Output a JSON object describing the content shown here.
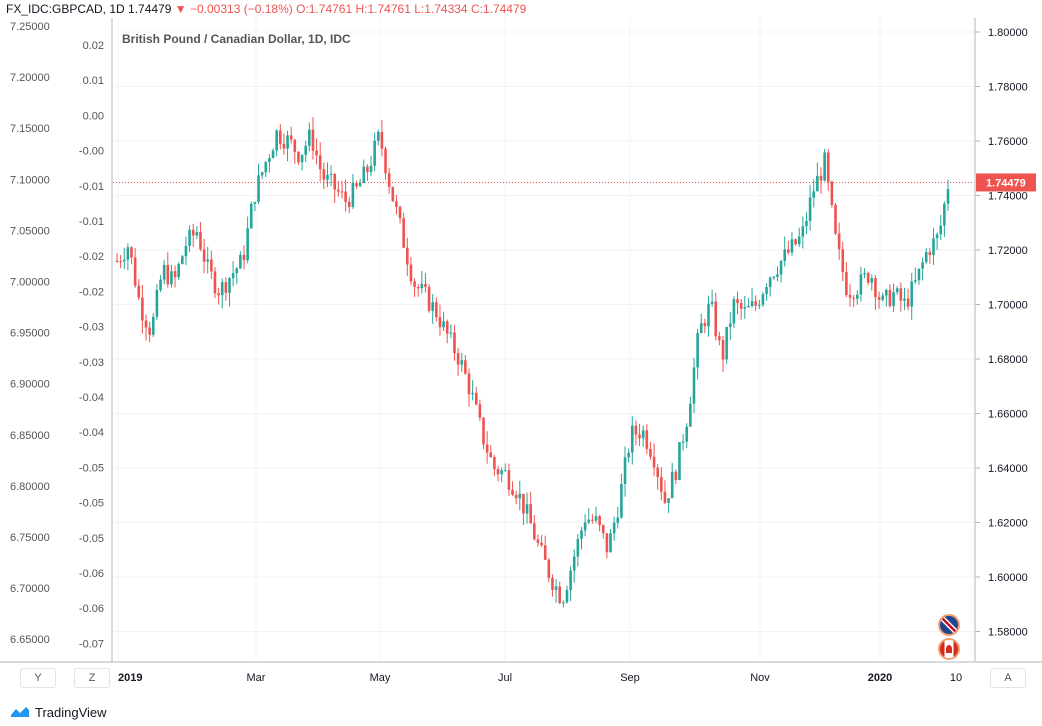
{
  "header": {
    "symbol": "FX_IDC:GBPCAD, 1D",
    "last": "1.74479",
    "change": "▼ −0.00313 (−0.18%)",
    "ohlc_open": "O:1.74761",
    "ohlc_high": "H:1.74761",
    "ohlc_low": "L:1.74334",
    "ohlc_close": "C:1.74479"
  },
  "footer": {
    "brand": "TradingView"
  },
  "buttons": {
    "y": "Y",
    "z": "Z",
    "a": "A"
  },
  "flags": {
    "uk_badge": "5",
    "ca_badge": "2"
  },
  "colors": {
    "up": "#26a69a",
    "down": "#ef5350",
    "grid": "#f0f3fa",
    "axis_text": "#131722",
    "price_line": "#ef5350"
  },
  "chart_data": {
    "type": "candlestick",
    "title": "British Pound / Canadian Dollar, 1D, IDC",
    "x_labels": [
      "2019",
      "Mar",
      "May",
      "Jul",
      "Sep",
      "Nov",
      "2020",
      "10"
    ],
    "right_axis": {
      "ticks": [
        "1.80000",
        "1.78000",
        "1.76000",
        "1.74000",
        "1.72000",
        "1.70000",
        "1.68000",
        "1.66000",
        "1.64000",
        "1.62000",
        "1.60000",
        "1.58000"
      ],
      "range": [
        1.572,
        1.806
      ]
    },
    "left_axis_outer": {
      "ticks": [
        "7.25000",
        "7.20000",
        "7.15000",
        "7.10000",
        "7.05000",
        "7.00000",
        "6.95000",
        "6.90000",
        "6.85000",
        "6.80000",
        "6.75000",
        "6.70000",
        "6.65000"
      ]
    },
    "left_axis_inner": {
      "ticks": [
        "0.02",
        "0.01",
        "0.00",
        "-0.00",
        "-0.01",
        "-0.01",
        "-0.02",
        "-0.02",
        "-0.03",
        "-0.03",
        "-0.04",
        "-0.04",
        "-0.05",
        "-0.05",
        "-0.05",
        "-0.06",
        "-0.06",
        "-0.07"
      ]
    },
    "last_price": "1.74479",
    "last_value": 1.74479,
    "close_path": [
      [
        0,
        1.716
      ],
      [
        5,
        1.722
      ],
      [
        10,
        1.7
      ],
      [
        15,
        1.69
      ],
      [
        20,
        1.713
      ],
      [
        25,
        1.708
      ],
      [
        30,
        1.722
      ],
      [
        35,
        1.727
      ],
      [
        40,
        1.712
      ],
      [
        45,
        1.705
      ],
      [
        50,
        1.711
      ],
      [
        55,
        1.716
      ],
      [
        60,
        1.74
      ],
      [
        65,
        1.752
      ],
      [
        70,
        1.763
      ],
      [
        75,
        1.76
      ],
      [
        80,
        1.755
      ],
      [
        85,
        1.762
      ],
      [
        90,
        1.747
      ],
      [
        95,
        1.743
      ],
      [
        100,
        1.738
      ],
      [
        105,
        1.742
      ],
      [
        110,
        1.75
      ],
      [
        115,
        1.762
      ],
      [
        120,
        1.742
      ],
      [
        125,
        1.725
      ],
      [
        130,
        1.708
      ],
      [
        135,
        1.703
      ],
      [
        140,
        1.697
      ],
      [
        145,
        1.688
      ],
      [
        150,
        1.68
      ],
      [
        155,
        1.668
      ],
      [
        160,
        1.652
      ],
      [
        165,
        1.64
      ],
      [
        170,
        1.638
      ],
      [
        175,
        1.632
      ],
      [
        180,
        1.622
      ],
      [
        185,
        1.61
      ],
      [
        190,
        1.6
      ],
      [
        195,
        1.592
      ],
      [
        200,
        1.607
      ],
      [
        205,
        1.622
      ],
      [
        210,
        1.62
      ],
      [
        215,
        1.61
      ],
      [
        220,
        1.628
      ],
      [
        225,
        1.652
      ],
      [
        230,
        1.654
      ],
      [
        235,
        1.645
      ],
      [
        240,
        1.628
      ],
      [
        245,
        1.64
      ],
      [
        250,
        1.66
      ],
      [
        255,
        1.69
      ],
      [
        260,
        1.7
      ],
      [
        265,
        1.68
      ],
      [
        270,
        1.7
      ],
      [
        275,
        1.697
      ],
      [
        280,
        1.7
      ],
      [
        285,
        1.71
      ],
      [
        290,
        1.715
      ],
      [
        295,
        1.72
      ],
      [
        300,
        1.725
      ],
      [
        305,
        1.742
      ],
      [
        310,
        1.752
      ],
      [
        315,
        1.722
      ],
      [
        320,
        1.705
      ],
      [
        325,
        1.707
      ],
      [
        330,
        1.712
      ],
      [
        335,
        1.7
      ],
      [
        340,
        1.704
      ],
      [
        345,
        1.7
      ],
      [
        350,
        1.708
      ],
      [
        355,
        1.72
      ],
      [
        360,
        1.725
      ],
      [
        364,
        1.744
      ]
    ]
  }
}
